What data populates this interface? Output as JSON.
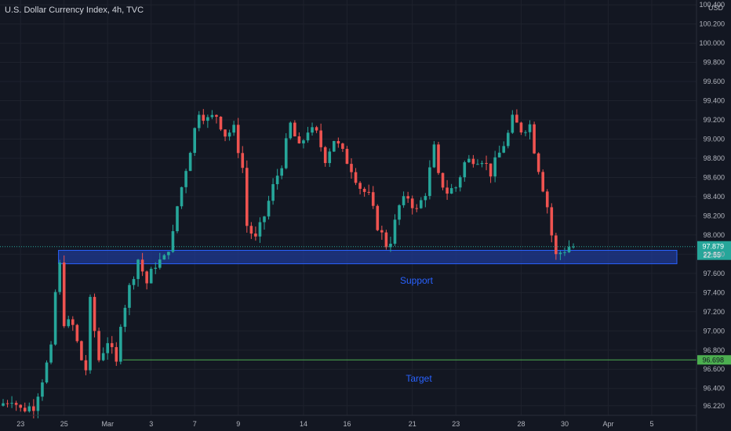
{
  "colors": {
    "background": "#131722",
    "grid": "#1e222d",
    "up": "#26a69a",
    "down": "#ef5350",
    "axis_text": "#b2b5be",
    "zone_fill": "#1f3a93",
    "zone_border": "#2962ff",
    "zone_text": "#2962ff",
    "target_line": "#4caf50",
    "last_price": "#26a69a",
    "target_badge": "#4caf50"
  },
  "chart_data": {
    "type": "candlestick",
    "title": "U.S. Dollar Currency Index, 4h, TVC",
    "currency": "USD",
    "ylim": [
      96.12,
      100.45
    ],
    "yticks": [
      "96.220",
      "96.400",
      "96.600",
      "96.800",
      "97.000",
      "97.200",
      "97.400",
      "97.600",
      "97.800",
      "98.000",
      "98.200",
      "98.400",
      "98.600",
      "98.800",
      "99.000",
      "99.200",
      "99.400",
      "99.600",
      "99.800",
      "100.000",
      "100.200",
      "100.400"
    ],
    "xticks": [
      {
        "label": "23",
        "bar": 4
      },
      {
        "label": "25",
        "bar": 14
      },
      {
        "label": "Mar",
        "bar": 24
      },
      {
        "label": "3",
        "bar": 34
      },
      {
        "label": "7",
        "bar": 44
      },
      {
        "label": "9",
        "bar": 54
      },
      {
        "label": "14",
        "bar": 69
      },
      {
        "label": "16",
        "bar": 79
      },
      {
        "label": "21",
        "bar": 94
      },
      {
        "label": "23",
        "bar": 104
      },
      {
        "label": "28",
        "bar": 119
      },
      {
        "label": "30",
        "bar": 129
      },
      {
        "label": "Apr",
        "bar": 139
      },
      {
        "label": "5",
        "bar": 149
      }
    ],
    "price_path": [
      [
        0,
        96.22
      ],
      [
        3,
        96.3
      ],
      [
        5,
        96.18
      ],
      [
        8,
        96.22
      ],
      [
        10,
        96.5
      ],
      [
        12,
        96.8
      ],
      [
        13,
        97.4
      ],
      [
        14,
        97.68
      ],
      [
        15,
        97.1
      ],
      [
        17,
        97.05
      ],
      [
        19,
        96.7
      ],
      [
        20,
        96.6
      ],
      [
        21,
        97.3
      ],
      [
        23,
        96.7
      ],
      [
        25,
        96.9
      ],
      [
        27,
        96.65
      ],
      [
        28,
        97.1
      ],
      [
        30,
        97.45
      ],
      [
        32,
        97.75
      ],
      [
        34,
        97.5
      ],
      [
        36,
        97.7
      ],
      [
        38,
        97.75
      ],
      [
        40,
        98.0
      ],
      [
        41,
        98.3
      ],
      [
        43,
        98.7
      ],
      [
        45,
        99.1
      ],
      [
        46,
        99.3
      ],
      [
        48,
        99.2
      ],
      [
        50,
        99.25
      ],
      [
        52,
        99.05
      ],
      [
        54,
        99.1
      ],
      [
        56,
        98.7
      ],
      [
        57,
        98.1
      ],
      [
        59,
        97.95
      ],
      [
        61,
        98.2
      ],
      [
        63,
        98.5
      ],
      [
        65,
        98.75
      ],
      [
        67,
        99.15
      ],
      [
        69,
        98.9
      ],
      [
        71,
        99.1
      ],
      [
        73,
        99.05
      ],
      [
        75,
        98.8
      ],
      [
        77,
        99.0
      ],
      [
        79,
        98.85
      ],
      [
        81,
        98.7
      ],
      [
        83,
        98.5
      ],
      [
        85,
        98.4
      ],
      [
        87,
        98.1
      ],
      [
        89,
        97.9
      ],
      [
        90,
        97.95
      ],
      [
        92,
        98.3
      ],
      [
        94,
        98.4
      ],
      [
        96,
        98.25
      ],
      [
        98,
        98.45
      ],
      [
        100,
        98.9
      ],
      [
        101,
        98.6
      ],
      [
        103,
        98.45
      ],
      [
        105,
        98.5
      ],
      [
        107,
        98.75
      ],
      [
        109,
        98.8
      ],
      [
        111,
        98.8
      ],
      [
        113,
        98.65
      ],
      [
        115,
        98.85
      ],
      [
        117,
        99.05
      ],
      [
        118,
        99.2
      ],
      [
        120,
        99.1
      ],
      [
        122,
        99.15
      ],
      [
        123,
        98.9
      ],
      [
        125,
        98.5
      ],
      [
        126,
        98.3
      ],
      [
        127,
        98.0
      ],
      [
        128,
        97.78
      ],
      [
        129,
        97.82
      ],
      [
        130,
        97.85
      ],
      [
        131,
        97.88
      ]
    ],
    "bar_count": 155,
    "support_zone": {
      "top": 97.84,
      "bottom": 97.7,
      "start_bar": 12,
      "label": "Support"
    },
    "target": {
      "price": 96.698,
      "label": "96.698",
      "start_bar": 27,
      "text_label": "Target"
    },
    "last_price": {
      "price": 97.879,
      "label": "97.879",
      "countdown": "22:55"
    }
  }
}
